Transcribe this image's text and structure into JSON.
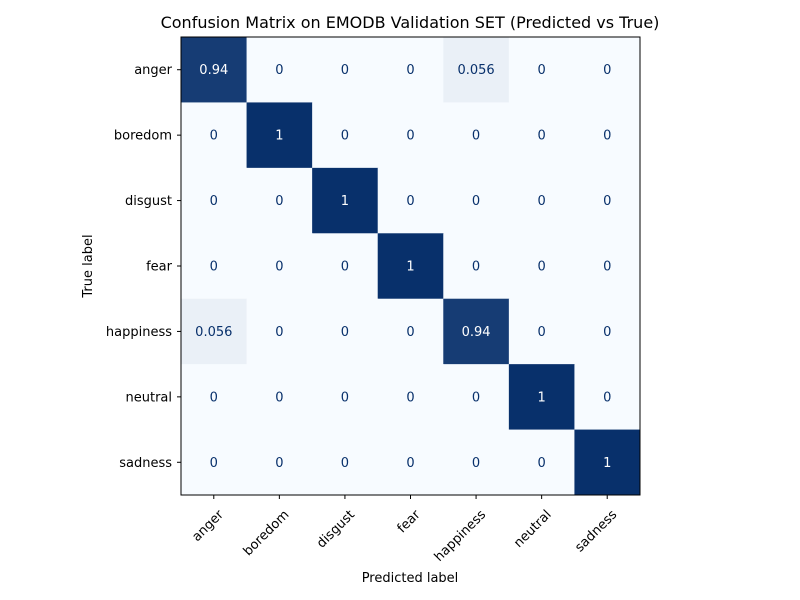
{
  "chart_data": {
    "type": "heatmap",
    "title": "Confusion Matrix on EMODB Validation SET (Predicted vs True)",
    "xlabel": "Predicted label",
    "ylabel": "True label",
    "categories": [
      "anger",
      "boredom",
      "disgust",
      "fear",
      "happiness",
      "neutral",
      "sadness"
    ],
    "rows": [
      "anger",
      "boredom",
      "disgust",
      "fear",
      "happiness",
      "neutral",
      "sadness"
    ],
    "matrix": [
      [
        0.94,
        0,
        0,
        0,
        0.056,
        0,
        0
      ],
      [
        0,
        1,
        0,
        0,
        0,
        0,
        0
      ],
      [
        0,
        0,
        1,
        0,
        0,
        0,
        0
      ],
      [
        0,
        0,
        0,
        1,
        0,
        0,
        0
      ],
      [
        0.056,
        0,
        0,
        0,
        0.94,
        0,
        0
      ],
      [
        0,
        0,
        0,
        0,
        0,
        1,
        0
      ],
      [
        0,
        0,
        0,
        0,
        0,
        0,
        1
      ]
    ],
    "value_range": [
      0,
      1
    ],
    "colormap": "Blues",
    "grid": false,
    "legend": "none"
  },
  "colors": {
    "low": "#f7fbff",
    "high": "#08306b",
    "text_dark": "#08306b",
    "text_light": "#ffffff"
  }
}
